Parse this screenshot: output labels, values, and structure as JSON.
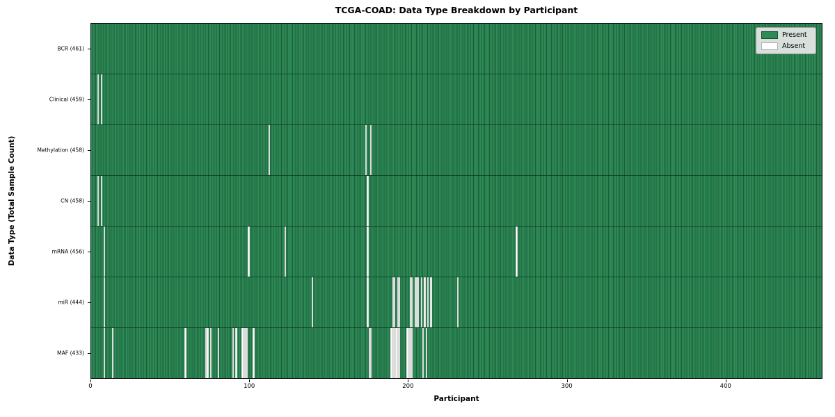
{
  "figure": {
    "title": "TCGA-COAD: Data Type Breakdown by Participant",
    "xlabel": "Participant",
    "ylabel": "Data Type (Total Sample Count)"
  },
  "legend": {
    "present_label": "Present",
    "absent_label": "Absent"
  },
  "chart_data": {
    "type": "heatmap",
    "title": "TCGA-COAD: Data Type Breakdown by Participant",
    "xlabel": "Participant",
    "ylabel": "Data Type (Total Sample Count)",
    "x_ticks": [
      0,
      100,
      200,
      300,
      400
    ],
    "x_range": [
      0,
      461
    ],
    "total_participants": 461,
    "grid": false,
    "legend_position": "upper right",
    "legend_entries": [
      {
        "label": "Present",
        "color": "#2e8b57"
      },
      {
        "label": "Absent",
        "color": "#ffffff"
      }
    ],
    "colors": {
      "present_fill": "#2e8b57",
      "bar_edge": "#1b5e3a",
      "absent_fill": "#ffffff",
      "legend_bg": "#e8e8e8"
    },
    "rows": [
      {
        "key": "bcr",
        "label": "BCR (461)",
        "data_type": "BCR",
        "present_count": 461,
        "absent_participants": []
      },
      {
        "key": "clinical",
        "label": "Clinical (459)",
        "data_type": "Clinical",
        "present_count": 459,
        "absent_participants": [
          4,
          6
        ]
      },
      {
        "key": "methylation",
        "label": "Methylation (458)",
        "data_type": "Methylation",
        "present_count": 458,
        "absent_participants": [
          112,
          173,
          176
        ]
      },
      {
        "key": "cn",
        "label": "CN (458)",
        "data_type": "CN",
        "present_count": 458,
        "absent_participants": [
          4,
          6,
          174
        ]
      },
      {
        "key": "mrna",
        "label": "mRNA (456)",
        "data_type": "mRNA",
        "present_count": 456,
        "absent_participants": [
          8,
          99,
          122,
          174,
          268
        ]
      },
      {
        "key": "mir",
        "label": "miR (444)",
        "data_type": "miR",
        "present_count": 444,
        "absent_participants": [
          8,
          139,
          174,
          190,
          191,
          193,
          194,
          201,
          202,
          204,
          205,
          206,
          208,
          210,
          212,
          214,
          231
        ]
      },
      {
        "key": "maf",
        "label": "MAF (433)",
        "data_type": "MAF",
        "present_count": 433,
        "absent_participants": [
          8,
          13,
          59,
          72,
          73,
          75,
          80,
          89,
          91,
          95,
          96,
          97,
          98,
          102,
          175,
          176,
          189,
          190,
          191,
          192,
          193,
          194,
          199,
          200,
          201,
          202,
          209,
          211
        ]
      }
    ]
  }
}
